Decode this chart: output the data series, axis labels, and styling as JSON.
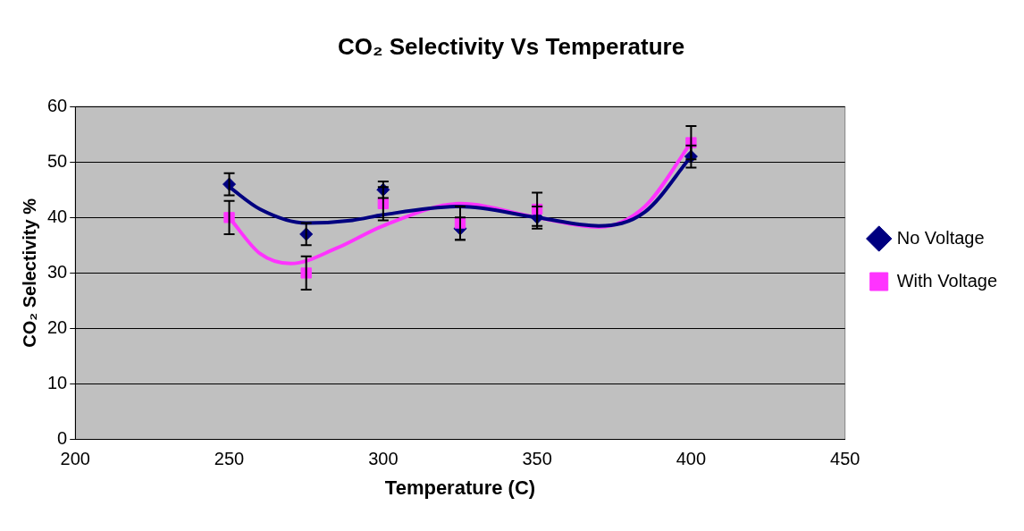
{
  "chart_data": {
    "type": "scatter",
    "title": "CO₂ Selectivity Vs Temperature",
    "xlabel": "Temperature (C)",
    "ylabel": "CO₂ Selectivity %",
    "xlim": [
      200,
      450
    ],
    "xticks": [
      200,
      250,
      300,
      350,
      400,
      450
    ],
    "ylim": [
      0,
      60
    ],
    "yticks": [
      0,
      10,
      20,
      30,
      40,
      50,
      60
    ],
    "grid": "y",
    "legend": "right",
    "series": [
      {
        "name": "No Voltage",
        "color": "#000080",
        "marker": "diamond",
        "x": [
          250,
          275,
          300,
          325,
          350,
          400
        ],
        "values": [
          46,
          37,
          45,
          38,
          40,
          51
        ],
        "errors": [
          2,
          2,
          1.5,
          2,
          2,
          2
        ]
      },
      {
        "name": "With Voltage",
        "color": "#ff33ff",
        "marker": "square",
        "x": [
          250,
          275,
          300,
          325,
          350,
          400
        ],
        "values": [
          40,
          30,
          42.5,
          39,
          41.5,
          53.5
        ],
        "errors": [
          3,
          3,
          3,
          3,
          3,
          3
        ]
      },
      {
        "type": "line",
        "color": "#000080",
        "marker": "none",
        "x": [
          250,
          260,
          275,
          290,
          300,
          325,
          350,
          370,
          385,
          400
        ],
        "values": [
          45.5,
          41.5,
          39,
          39.5,
          40.5,
          42,
          40,
          38.5,
          41,
          51
        ]
      },
      {
        "type": "line",
        "color": "#ff33ff",
        "marker": "none",
        "x": [
          250,
          260,
          270,
          285,
          300,
          325,
          350,
          370,
          385,
          400
        ],
        "values": [
          40,
          33.5,
          31.7,
          34.5,
          38.5,
          42.5,
          40,
          38.3,
          42,
          53.5
        ]
      }
    ]
  }
}
